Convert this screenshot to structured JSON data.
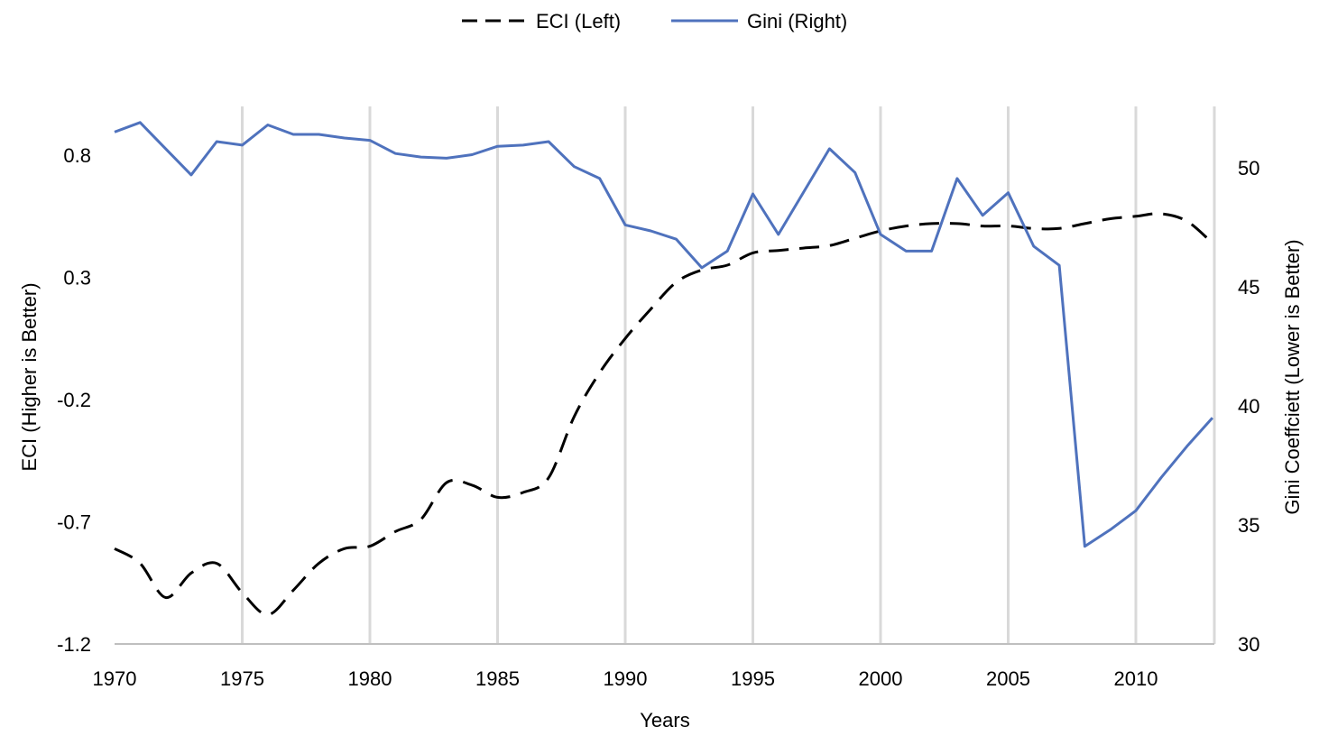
{
  "chart_data": {
    "type": "line",
    "xlabel": "Years",
    "ylabel_left": "ECI  (Higher is Better)",
    "ylabel_right": "Gini Coeffciett (Lower is Better)",
    "x_ticks": [
      "1970",
      "1975",
      "1980",
      "1985",
      "1990",
      "1995",
      "2000",
      "2005",
      "2010"
    ],
    "x_range": [
      1970,
      2013
    ],
    "y_left_ticks": [
      "0.8",
      "0.3",
      "-0.2",
      "-0.7",
      "-1.2"
    ],
    "y_left_range": [
      -1.2,
      0.9
    ],
    "y_right_ticks": [
      "50",
      "45",
      "40",
      "35",
      "30"
    ],
    "y_right_range": [
      30,
      52.8
    ],
    "grid": "vertical lines at x ticks",
    "legend_position": "top-center",
    "series": [
      {
        "name": "ECI (Left)",
        "axis": "left",
        "style": "dashed",
        "color": "#000000",
        "x": [
          1970,
          1971,
          1972,
          1973,
          1974,
          1975,
          1976,
          1977,
          1978,
          1979,
          1980,
          1981,
          1982,
          1983,
          1984,
          1985,
          1986,
          1987,
          1988,
          1989,
          1990,
          1991,
          1992,
          1993,
          1994,
          1995,
          1996,
          1997,
          1998,
          1999,
          2000,
          2001,
          2002,
          2003,
          2004,
          2005,
          2006,
          2007,
          2008,
          2009,
          2010,
          2011,
          2012,
          2013
        ],
        "y": [
          -0.81,
          -0.87,
          -1.01,
          -0.91,
          -0.87,
          -0.99,
          -1.08,
          -0.98,
          -0.87,
          -0.81,
          -0.8,
          -0.74,
          -0.69,
          -0.54,
          -0.55,
          -0.6,
          -0.58,
          -0.52,
          -0.27,
          -0.09,
          0.05,
          0.17,
          0.28,
          0.33,
          0.35,
          0.4,
          0.41,
          0.42,
          0.43,
          0.46,
          0.49,
          0.51,
          0.52,
          0.52,
          0.51,
          0.51,
          0.5,
          0.5,
          0.52,
          0.54,
          0.55,
          0.56,
          0.53,
          0.44
        ]
      },
      {
        "name": "Gini (Right)",
        "axis": "right",
        "style": "solid",
        "color": "#4F72BD",
        "x": [
          1970,
          1971,
          1972,
          1973,
          1974,
          1975,
          1976,
          1977,
          1978,
          1979,
          1980,
          1981,
          1982,
          1983,
          1984,
          1985,
          1986,
          1987,
          1988,
          1989,
          1990,
          1991,
          1992,
          1993,
          1994,
          1995,
          1996,
          1997,
          1998,
          1999,
          2000,
          2001,
          2002,
          2003,
          2004,
          2005,
          2006,
          2007,
          2008,
          2009,
          2010,
          2011,
          2012,
          2013
        ],
        "y": [
          51.5,
          51.9,
          50.8,
          49.7,
          51.1,
          50.95,
          51.8,
          51.4,
          51.4,
          51.25,
          51.15,
          50.6,
          50.45,
          50.4,
          50.55,
          50.9,
          50.95,
          51.1,
          50.05,
          49.55,
          47.6,
          47.35,
          47.0,
          45.8,
          46.5,
          48.9,
          47.2,
          49.0,
          50.8,
          49.8,
          47.2,
          46.5,
          46.5,
          49.55,
          48.0,
          48.95,
          46.7,
          45.9,
          34.1,
          34.8,
          35.6,
          37.0,
          38.3,
          39.5
        ]
      }
    ]
  }
}
